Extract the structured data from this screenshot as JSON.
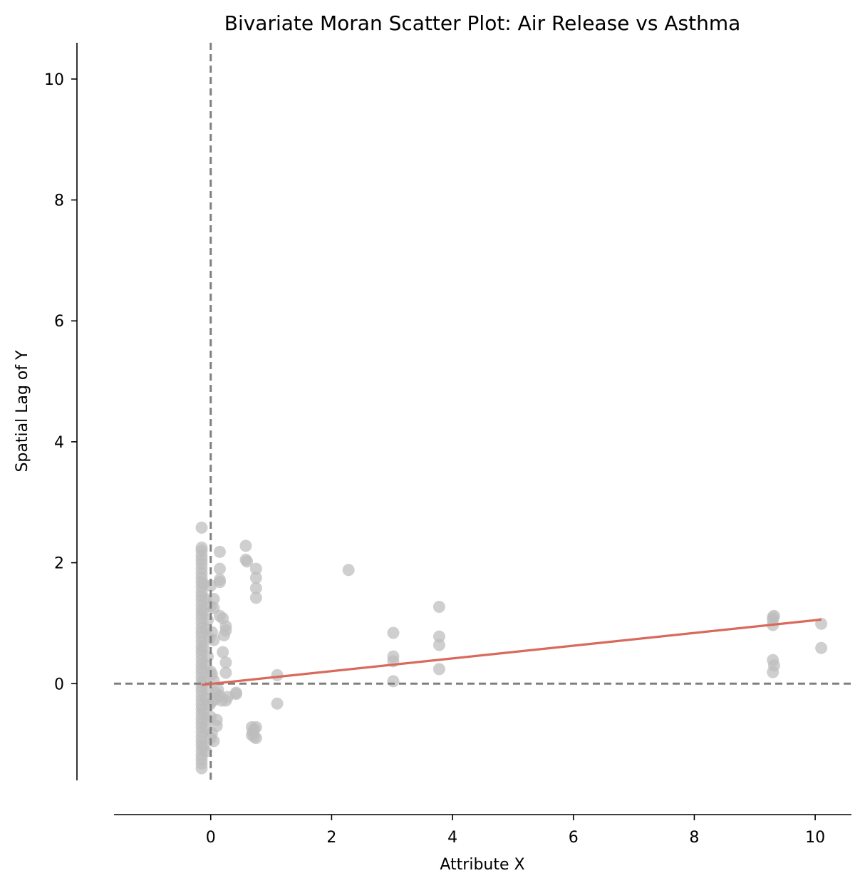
{
  "chart_data": {
    "type": "scatter",
    "title": "Bivariate Moran Scatter Plot: Air Release vs Asthma",
    "xlabel": "Attribute X",
    "ylabel": "Spatial Lag of Y",
    "xlim": [
      -1.6,
      10.6
    ],
    "ylim": [
      -1.6,
      10.6
    ],
    "xticks": [
      0,
      2,
      4,
      6,
      8,
      10
    ],
    "yticks": [
      0,
      2,
      4,
      6,
      8,
      10
    ],
    "grid": false,
    "reference_lines": {
      "x": 0,
      "y": 0,
      "style": "dashed",
      "color": "#808080"
    },
    "point_color": "#bdbdbd",
    "fit_line": {
      "x": [
        -0.15,
        10.1
      ],
      "y": [
        -0.02,
        1.06
      ],
      "color": "#d9695a"
    },
    "points": [
      [
        -0.15,
        2.58
      ],
      [
        -0.15,
        2.25
      ],
      [
        -0.15,
        2.2
      ],
      [
        -0.15,
        2.12
      ],
      [
        -0.15,
        2.05
      ],
      [
        -0.15,
        1.98
      ],
      [
        -0.15,
        1.9
      ],
      [
        -0.15,
        1.82
      ],
      [
        -0.15,
        1.75
      ],
      [
        -0.15,
        1.68
      ],
      [
        -0.15,
        1.6
      ],
      [
        -0.15,
        1.52
      ],
      [
        -0.15,
        1.45
      ],
      [
        -0.15,
        1.38
      ],
      [
        -0.15,
        1.3
      ],
      [
        -0.15,
        1.22
      ],
      [
        -0.15,
        1.15
      ],
      [
        -0.15,
        1.08
      ],
      [
        -0.15,
        1.0
      ],
      [
        -0.15,
        0.92
      ],
      [
        -0.15,
        0.85
      ],
      [
        -0.15,
        0.78
      ],
      [
        -0.15,
        0.7
      ],
      [
        -0.15,
        0.62
      ],
      [
        -0.15,
        0.55
      ],
      [
        -0.15,
        0.48
      ],
      [
        -0.15,
        0.4
      ],
      [
        -0.15,
        0.32
      ],
      [
        -0.15,
        0.25
      ],
      [
        -0.15,
        0.18
      ],
      [
        -0.15,
        0.1
      ],
      [
        -0.15,
        0.02
      ],
      [
        -0.15,
        -0.05
      ],
      [
        -0.15,
        -0.12
      ],
      [
        -0.15,
        -0.2
      ],
      [
        -0.15,
        -0.28
      ],
      [
        -0.15,
        -0.35
      ],
      [
        -0.15,
        -0.42
      ],
      [
        -0.15,
        -0.5
      ],
      [
        -0.15,
        -0.58
      ],
      [
        -0.15,
        -0.65
      ],
      [
        -0.15,
        -0.72
      ],
      [
        -0.15,
        -0.8
      ],
      [
        -0.15,
        -0.88
      ],
      [
        -0.15,
        -0.95
      ],
      [
        -0.15,
        -1.02
      ],
      [
        -0.15,
        -1.1
      ],
      [
        -0.15,
        -1.18
      ],
      [
        -0.15,
        -1.25
      ],
      [
        -0.15,
        -1.32
      ],
      [
        -0.15,
        -1.4
      ],
      [
        -0.12,
        1.65
      ],
      [
        -0.12,
        1.2
      ],
      [
        -0.12,
        0.6
      ],
      [
        -0.12,
        0.05
      ],
      [
        -0.12,
        -0.45
      ],
      [
        -0.12,
        -1.05
      ],
      [
        -0.08,
        1.4
      ],
      [
        -0.08,
        0.9
      ],
      [
        -0.08,
        0.3
      ],
      [
        -0.08,
        -0.25
      ],
      [
        -0.08,
        -0.75
      ],
      [
        -0.08,
        -1.12
      ],
      [
        -0.05,
        1.05
      ],
      [
        -0.05,
        0.45
      ],
      [
        -0.05,
        -0.1
      ],
      [
        -0.05,
        -0.6
      ],
      [
        -0.02,
        0.75
      ],
      [
        -0.02,
        -0.35
      ],
      [
        0.0,
        1.28
      ],
      [
        0.0,
        0.2
      ],
      [
        0.0,
        -0.9
      ],
      [
        0.0,
        1.62
      ],
      [
        0.0,
        -0.55
      ],
      [
        0.02,
        0.85
      ],
      [
        0.02,
        0.15
      ],
      [
        0.02,
        -0.3
      ],
      [
        0.02,
        -0.82
      ],
      [
        0.05,
        1.4
      ],
      [
        0.05,
        1.25
      ],
      [
        0.05,
        0.72
      ],
      [
        0.05,
        0.05
      ],
      [
        0.05,
        -0.95
      ],
      [
        0.08,
        -0.15
      ],
      [
        0.08,
        -0.25
      ],
      [
        0.1,
        -0.6
      ],
      [
        0.1,
        -0.7
      ],
      [
        0.12,
        -0.1
      ],
      [
        0.15,
        2.18
      ],
      [
        0.15,
        1.9
      ],
      [
        0.15,
        1.72
      ],
      [
        0.15,
        1.68
      ],
      [
        0.15,
        1.12
      ],
      [
        0.15,
        -0.2
      ],
      [
        0.18,
        -0.28
      ],
      [
        0.2,
        1.08
      ],
      [
        0.2,
        0.52
      ],
      [
        0.22,
        0.8
      ],
      [
        0.25,
        0.95
      ],
      [
        0.25,
        0.88
      ],
      [
        0.25,
        0.35
      ],
      [
        0.25,
        0.18
      ],
      [
        0.25,
        -0.28
      ],
      [
        0.28,
        -0.22
      ],
      [
        0.42,
        -0.15
      ],
      [
        0.42,
        -0.17
      ],
      [
        0.58,
        2.28
      ],
      [
        0.58,
        2.05
      ],
      [
        0.6,
        2.02
      ],
      [
        0.68,
        -0.72
      ],
      [
        0.68,
        -0.85
      ],
      [
        0.7,
        -0.8
      ],
      [
        0.72,
        -0.88
      ],
      [
        0.72,
        -0.75
      ],
      [
        0.75,
        1.9
      ],
      [
        0.75,
        1.75
      ],
      [
        0.75,
        1.58
      ],
      [
        0.75,
        1.42
      ],
      [
        0.75,
        -0.9
      ],
      [
        0.75,
        -0.72
      ],
      [
        1.1,
        0.14
      ],
      [
        1.1,
        -0.33
      ],
      [
        2.28,
        1.88
      ],
      [
        3.02,
        0.84
      ],
      [
        3.02,
        0.45
      ],
      [
        3.02,
        0.37
      ],
      [
        3.02,
        0.04
      ],
      [
        3.78,
        1.27
      ],
      [
        3.78,
        0.78
      ],
      [
        3.78,
        0.64
      ],
      [
        3.78,
        0.24
      ],
      [
        9.3,
        1.1
      ],
      [
        9.3,
        1.05
      ],
      [
        9.32,
        1.12
      ],
      [
        9.3,
        0.97
      ],
      [
        9.3,
        0.39
      ],
      [
        9.32,
        0.3
      ],
      [
        9.3,
        0.19
      ],
      [
        10.1,
        0.99
      ],
      [
        10.1,
        0.59
      ]
    ]
  }
}
